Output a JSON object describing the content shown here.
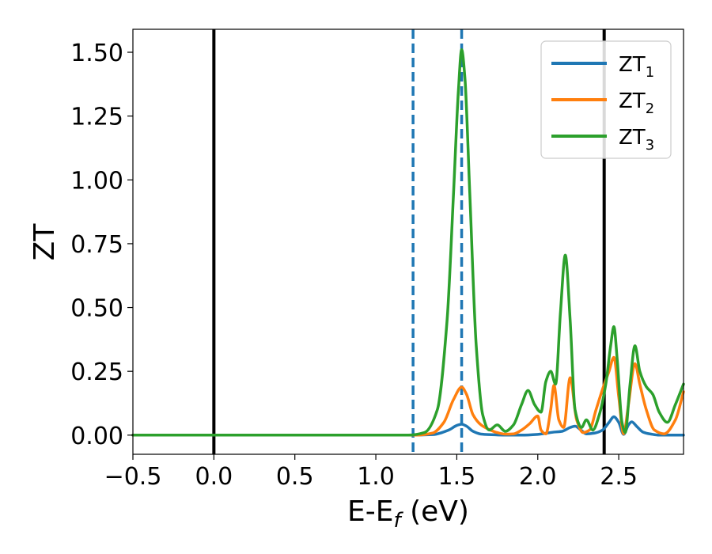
{
  "chart_data": {
    "type": "line",
    "xlabel": "E-E",
    "xlabel_sub": "f",
    "xlabel_unit": " (eV)",
    "ylabel": "ZT",
    "xlim": [
      -0.5,
      2.9
    ],
    "ylim": [
      -0.075,
      1.59
    ],
    "xticks": [
      -0.5,
      0.0,
      0.5,
      1.0,
      1.5,
      2.0,
      2.5
    ],
    "xtick_labels": [
      "−0.5",
      "0.0",
      "0.5",
      "1.0",
      "1.5",
      "2.0",
      "2.5"
    ],
    "yticks": [
      0.0,
      0.25,
      0.5,
      0.75,
      1.0,
      1.25,
      1.5
    ],
    "ytick_labels": [
      "0.00",
      "0.25",
      "0.50",
      "0.75",
      "1.00",
      "1.25",
      "1.50"
    ],
    "legend_position": "top-right",
    "grid": false,
    "vlines": [
      {
        "x": 0.0,
        "style": "solid",
        "color": "#000000"
      },
      {
        "x": 2.41,
        "style": "solid",
        "color": "#000000"
      },
      {
        "x": 1.23,
        "style": "dashed",
        "color": "#1f77b4"
      },
      {
        "x": 1.53,
        "style": "dashed",
        "color": "#1f77b4"
      }
    ],
    "series": [
      {
        "name": "ZT",
        "name_sub": "1",
        "color": "#1f77b4",
        "x": [
          -0.5,
          1.2,
          1.35,
          1.45,
          1.5,
          1.53,
          1.56,
          1.6,
          1.65,
          1.7,
          1.8,
          1.9,
          2.0,
          2.1,
          2.15,
          2.2,
          2.23,
          2.27,
          2.3,
          2.35,
          2.4,
          2.44,
          2.47,
          2.5,
          2.53,
          2.56,
          2.58,
          2.61,
          2.65,
          2.7,
          2.75,
          2.8,
          2.9
        ],
        "y": [
          0.0,
          0.0,
          0.002,
          0.02,
          0.038,
          0.043,
          0.035,
          0.015,
          0.004,
          0.002,
          0.0,
          0.0,
          0.003,
          0.012,
          0.015,
          0.03,
          0.035,
          0.018,
          0.005,
          0.008,
          0.02,
          0.05,
          0.072,
          0.05,
          0.003,
          0.04,
          0.052,
          0.035,
          0.012,
          0.004,
          0.0,
          0.0,
          0.0
        ]
      },
      {
        "name": "ZT",
        "name_sub": "2",
        "color": "#ff7f0e",
        "x": [
          -0.5,
          1.25,
          1.35,
          1.42,
          1.48,
          1.53,
          1.56,
          1.6,
          1.65,
          1.7,
          1.75,
          1.8,
          1.85,
          1.9,
          1.95,
          2.0,
          2.02,
          2.05,
          2.08,
          2.1,
          2.13,
          2.16,
          2.2,
          2.24,
          2.28,
          2.32,
          2.36,
          2.4,
          2.44,
          2.47,
          2.5,
          2.53,
          2.56,
          2.6,
          2.63,
          2.67,
          2.72,
          2.78,
          2.85,
          2.9
        ],
        "y": [
          0.0,
          0.0,
          0.008,
          0.05,
          0.14,
          0.188,
          0.16,
          0.08,
          0.04,
          0.022,
          0.01,
          0.004,
          0.005,
          0.02,
          0.045,
          0.075,
          0.02,
          0.005,
          0.1,
          0.195,
          0.06,
          0.03,
          0.225,
          0.06,
          0.01,
          0.02,
          0.1,
          0.18,
          0.25,
          0.305,
          0.15,
          0.005,
          0.12,
          0.28,
          0.2,
          0.1,
          0.02,
          0.005,
          0.06,
          0.17
        ]
      },
      {
        "name": "ZT",
        "name_sub": "3",
        "color": "#2ca02c",
        "x": [
          -0.5,
          1.2,
          1.3,
          1.38,
          1.44,
          1.48,
          1.51,
          1.53,
          1.55,
          1.58,
          1.62,
          1.66,
          1.7,
          1.75,
          1.8,
          1.85,
          1.9,
          1.94,
          1.98,
          2.02,
          2.05,
          2.08,
          2.11,
          2.14,
          2.17,
          2.2,
          2.23,
          2.27,
          2.3,
          2.34,
          2.38,
          2.42,
          2.45,
          2.47,
          2.49,
          2.52,
          2.54,
          2.57,
          2.6,
          2.63,
          2.67,
          2.71,
          2.75,
          2.8,
          2.85,
          2.9
        ],
        "y": [
          0.0,
          0.0,
          0.01,
          0.1,
          0.45,
          0.95,
          1.35,
          1.51,
          1.4,
          0.95,
          0.35,
          0.08,
          0.02,
          0.04,
          0.015,
          0.04,
          0.12,
          0.175,
          0.12,
          0.09,
          0.21,
          0.25,
          0.2,
          0.48,
          0.705,
          0.45,
          0.1,
          0.03,
          0.06,
          0.02,
          0.08,
          0.2,
          0.35,
          0.425,
          0.3,
          0.05,
          0.01,
          0.2,
          0.35,
          0.25,
          0.19,
          0.16,
          0.09,
          0.05,
          0.12,
          0.2
        ]
      }
    ]
  }
}
